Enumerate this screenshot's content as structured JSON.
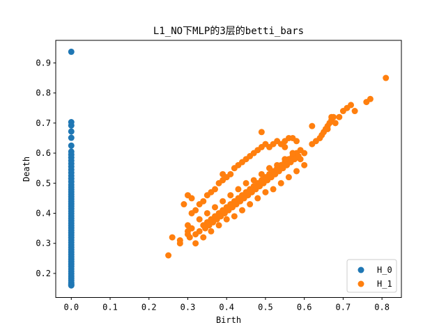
{
  "chart_data": {
    "type": "scatter",
    "title": "L1_NO下MLP的3层的betti_bars",
    "xlabel": "Birth",
    "ylabel": "Death",
    "xlim": [
      -0.04,
      0.85
    ],
    "ylim": [
      0.12,
      0.975
    ],
    "xticks": [
      0.0,
      0.1,
      0.2,
      0.3,
      0.4,
      0.5,
      0.6,
      0.7,
      0.8
    ],
    "yticks": [
      0.2,
      0.3,
      0.4,
      0.5,
      0.6,
      0.7,
      0.8,
      0.9
    ],
    "xtick_labels": [
      "0.0",
      "0.1",
      "0.2",
      "0.3",
      "0.4",
      "0.5",
      "0.6",
      "0.7",
      "0.8"
    ],
    "ytick_labels": [
      "0.2",
      "0.3",
      "0.4",
      "0.5",
      "0.6",
      "0.7",
      "0.8",
      "0.9"
    ],
    "grid": false,
    "legend_position": "lower-right",
    "series": [
      {
        "name": "H_0",
        "color": "#1f77b4",
        "x": [
          0,
          0,
          0,
          0,
          0,
          0,
          0,
          0,
          0,
          0,
          0,
          0,
          0,
          0,
          0,
          0,
          0,
          0,
          0,
          0,
          0,
          0,
          0,
          0,
          0,
          0,
          0,
          0,
          0,
          0,
          0,
          0,
          0,
          0,
          0,
          0,
          0,
          0,
          0,
          0,
          0,
          0,
          0,
          0,
          0,
          0,
          0,
          0,
          0,
          0,
          0,
          0,
          0,
          0,
          0,
          0,
          0,
          0,
          0,
          0,
          0,
          0
        ],
        "y": [
          0.937,
          0.703,
          0.692,
          0.672,
          0.651,
          0.625,
          0.605,
          0.595,
          0.585,
          0.575,
          0.565,
          0.555,
          0.545,
          0.535,
          0.525,
          0.515,
          0.505,
          0.495,
          0.487,
          0.479,
          0.471,
          0.463,
          0.455,
          0.447,
          0.439,
          0.431,
          0.423,
          0.415,
          0.407,
          0.399,
          0.391,
          0.383,
          0.375,
          0.367,
          0.359,
          0.351,
          0.343,
          0.335,
          0.327,
          0.319,
          0.311,
          0.303,
          0.295,
          0.287,
          0.279,
          0.271,
          0.263,
          0.255,
          0.247,
          0.239,
          0.231,
          0.223,
          0.215,
          0.207,
          0.199,
          0.191,
          0.184,
          0.177,
          0.17,
          0.165,
          0.162,
          0.16
        ]
      },
      {
        "name": "H_1",
        "color": "#ff7f0e",
        "x": [
          0.25,
          0.26,
          0.28,
          0.3,
          0.3,
          0.305,
          0.31,
          0.32,
          0.33,
          0.34,
          0.345,
          0.35,
          0.355,
          0.36,
          0.365,
          0.37,
          0.375,
          0.38,
          0.385,
          0.39,
          0.395,
          0.4,
          0.405,
          0.41,
          0.415,
          0.42,
          0.425,
          0.43,
          0.435,
          0.44,
          0.445,
          0.45,
          0.455,
          0.46,
          0.465,
          0.47,
          0.475,
          0.48,
          0.485,
          0.49,
          0.495,
          0.5,
          0.505,
          0.51,
          0.515,
          0.52,
          0.525,
          0.53,
          0.535,
          0.54,
          0.545,
          0.55,
          0.555,
          0.56,
          0.565,
          0.57,
          0.575,
          0.58,
          0.585,
          0.59,
          0.31,
          0.32,
          0.33,
          0.34,
          0.35,
          0.36,
          0.37,
          0.38,
          0.39,
          0.4,
          0.41,
          0.42,
          0.43,
          0.44,
          0.45,
          0.46,
          0.47,
          0.48,
          0.49,
          0.5,
          0.51,
          0.52,
          0.53,
          0.54,
          0.55,
          0.56,
          0.57,
          0.58,
          0.33,
          0.35,
          0.37,
          0.39,
          0.41,
          0.43,
          0.45,
          0.47,
          0.49,
          0.51,
          0.53,
          0.55,
          0.57,
          0.32,
          0.34,
          0.36,
          0.38,
          0.4,
          0.42,
          0.44,
          0.46,
          0.48,
          0.5,
          0.52,
          0.54,
          0.56,
          0.58,
          0.6,
          0.29,
          0.3,
          0.31,
          0.62,
          0.63,
          0.64,
          0.645,
          0.65,
          0.655,
          0.66,
          0.665,
          0.67,
          0.675,
          0.68,
          0.69,
          0.7,
          0.71,
          0.72,
          0.73,
          0.76,
          0.77,
          0.81,
          0.49,
          0.62,
          0.67,
          0.66,
          0.59,
          0.55,
          0.6,
          0.28,
          0.3,
          0.39
        ],
        "y": [
          0.26,
          0.32,
          0.31,
          0.34,
          0.33,
          0.32,
          0.35,
          0.33,
          0.34,
          0.36,
          0.35,
          0.37,
          0.36,
          0.38,
          0.37,
          0.39,
          0.38,
          0.4,
          0.39,
          0.41,
          0.4,
          0.42,
          0.41,
          0.43,
          0.42,
          0.44,
          0.43,
          0.45,
          0.44,
          0.46,
          0.45,
          0.47,
          0.46,
          0.48,
          0.47,
          0.49,
          0.48,
          0.5,
          0.49,
          0.51,
          0.5,
          0.52,
          0.51,
          0.53,
          0.52,
          0.54,
          0.53,
          0.55,
          0.54,
          0.56,
          0.55,
          0.57,
          0.56,
          0.58,
          0.57,
          0.59,
          0.58,
          0.6,
          0.59,
          0.61,
          0.4,
          0.41,
          0.43,
          0.44,
          0.46,
          0.47,
          0.48,
          0.5,
          0.51,
          0.52,
          0.53,
          0.55,
          0.56,
          0.57,
          0.58,
          0.59,
          0.6,
          0.61,
          0.62,
          0.63,
          0.62,
          0.63,
          0.64,
          0.63,
          0.64,
          0.65,
          0.65,
          0.64,
          0.38,
          0.4,
          0.42,
          0.44,
          0.46,
          0.48,
          0.5,
          0.51,
          0.53,
          0.55,
          0.56,
          0.58,
          0.6,
          0.3,
          0.32,
          0.34,
          0.36,
          0.38,
          0.39,
          0.41,
          0.43,
          0.45,
          0.47,
          0.48,
          0.5,
          0.52,
          0.54,
          0.56,
          0.43,
          0.46,
          0.45,
          0.63,
          0.64,
          0.65,
          0.66,
          0.67,
          0.68,
          0.69,
          0.7,
          0.71,
          0.72,
          0.7,
          0.72,
          0.74,
          0.75,
          0.76,
          0.74,
          0.77,
          0.78,
          0.85,
          0.67,
          0.69,
          0.72,
          0.68,
          0.58,
          0.62,
          0.6,
          0.3,
          0.36,
          0.53
        ]
      }
    ]
  }
}
